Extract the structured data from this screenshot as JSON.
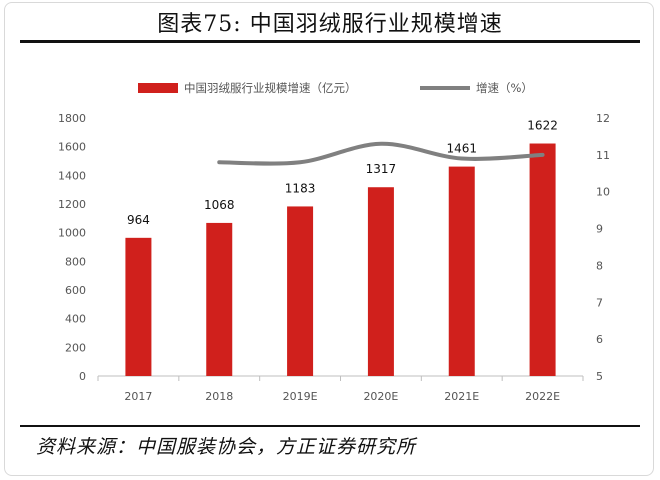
{
  "figure": {
    "title": "图表75:   中国羽绒服行业规模增速",
    "source": "资料来源：中国服装协会，方正证券研究所"
  },
  "colors": {
    "bar": "#d0201c",
    "line": "#808080"
  },
  "chart_data": {
    "type": "bar",
    "categories": [
      "2017",
      "2018",
      "2019E",
      "2020E",
      "2021E",
      "2022E"
    ],
    "series": [
      {
        "name": "中国羽绒服行业规模增速（亿元）",
        "type": "bar",
        "axis": "left",
        "values": [
          964,
          1068,
          1183,
          1317,
          1461,
          1622
        ]
      },
      {
        "name": "增速（%）",
        "type": "line",
        "axis": "right",
        "values": [
          null,
          10.8,
          10.8,
          11.3,
          10.9,
          11.0
        ]
      }
    ],
    "ylim_left": [
      0,
      1800
    ],
    "yticks_left": [
      "0",
      "200",
      "400",
      "600",
      "800",
      "1000",
      "1200",
      "1400",
      "1600",
      "1800"
    ],
    "ylim_right": [
      5,
      12
    ],
    "yticks_right": [
      "5",
      "6",
      "7",
      "8",
      "9",
      "10",
      "11",
      "12"
    ],
    "grid": false,
    "legend_position": "top"
  }
}
